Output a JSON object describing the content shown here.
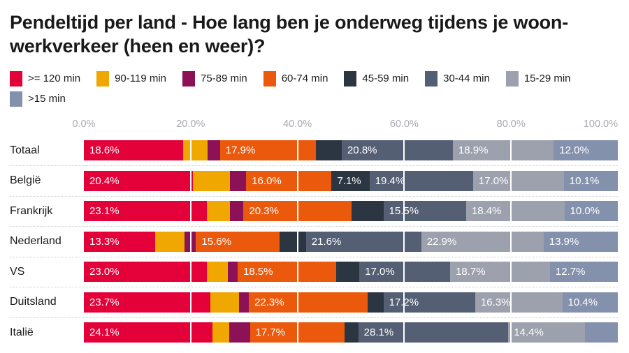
{
  "title": "Pendeltijd per land - Hoe lang ben je onderweg tijdens je woon-werkverkeer (heen en weer)?",
  "chart_data": {
    "type": "bar",
    "stacked": true,
    "orientation": "horizontal",
    "title": "Pendeltijd per land - Hoe lang ben je onderweg tijdens je woon-werkverkeer (heen en weer)?",
    "legend_position": "top",
    "xlim": [
      0,
      100
    ],
    "x_ticks": [
      "0.0%",
      "20.0%",
      "40.0%",
      "60.0%",
      "80.0%",
      "100.0%"
    ],
    "tick_values": [
      0,
      20,
      40,
      60,
      80,
      100
    ],
    "categories": [
      "Totaal",
      "België",
      "Frankrijk",
      "Nederland",
      "VS",
      "Duitsland",
      "Italië"
    ],
    "series": [
      {
        "name": ">= 120 min",
        "color": "#e40039",
        "values": [
          18.6,
          20.4,
          23.1,
          13.3,
          23.0,
          23.7,
          24.1
        ]
      },
      {
        "name": "90-119 min",
        "color": "#f0a800",
        "values": [
          4.6,
          6.9,
          4.2,
          5.6,
          3.9,
          5.4,
          3.1
        ]
      },
      {
        "name": "75-89 min",
        "color": "#8c1156",
        "values": [
          2.3,
          3.1,
          2.6,
          2.1,
          1.9,
          1.8,
          3.9
        ]
      },
      {
        "name": "60-74 min",
        "color": "#eb5a0c",
        "values": [
          17.9,
          16.0,
          20.3,
          15.6,
          18.5,
          22.3,
          17.7
        ]
      },
      {
        "name": "45-59 min",
        "color": "#2c3643",
        "values": [
          4.9,
          7.1,
          5.9,
          5.0,
          4.3,
          2.9,
          2.6
        ]
      },
      {
        "name": "30-44 min",
        "color": "#545f74",
        "values": [
          20.8,
          19.4,
          15.5,
          21.6,
          17.0,
          17.2,
          28.1
        ]
      },
      {
        "name": "15-29 min",
        "color": "#9ca1ad",
        "values": [
          18.9,
          17.0,
          18.4,
          22.9,
          18.7,
          16.3,
          14.4
        ]
      },
      {
        "name": ">15 min",
        "color": "#8491ad",
        "values": [
          12.0,
          10.1,
          10.0,
          13.9,
          12.7,
          10.4,
          6.1
        ]
      }
    ]
  }
}
